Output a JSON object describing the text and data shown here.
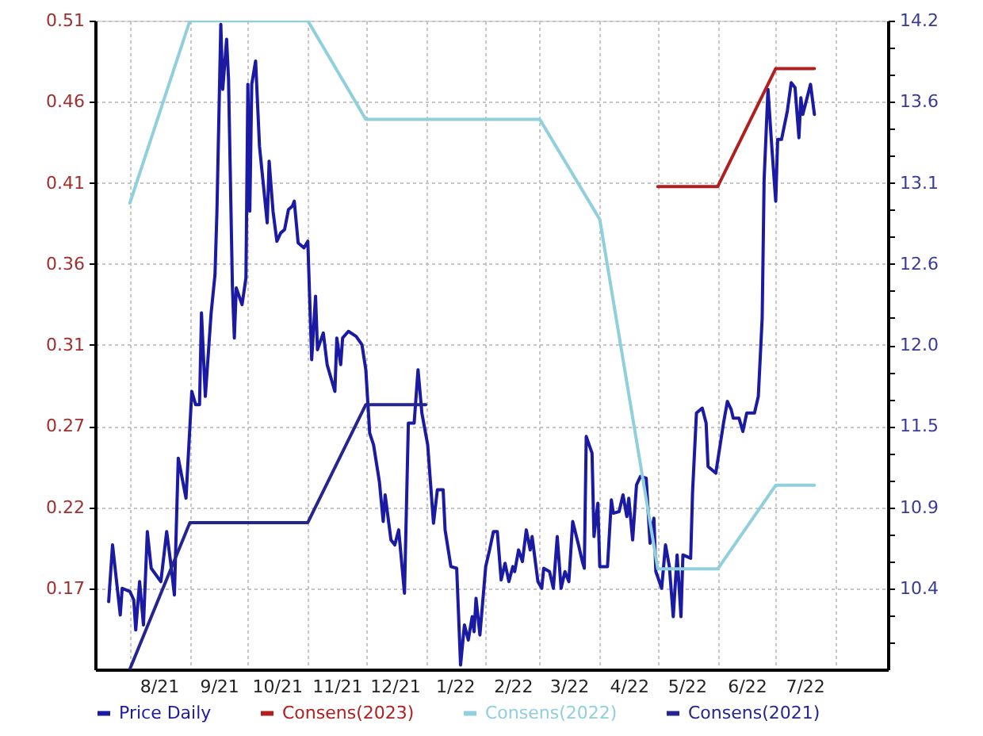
{
  "chart_data": {
    "type": "line",
    "xlim": [
      "2021-07-14",
      "2022-08-28"
    ],
    "xticks": [
      {
        "value": "2021-08-01",
        "label": null
      },
      {
        "value": "2021-08-16",
        "label": "8/21"
      },
      {
        "value": "2021-09-01",
        "label": null
      },
      {
        "value": "2021-09-16",
        "label": "9/21"
      },
      {
        "value": "2021-10-01",
        "label": null
      },
      {
        "value": "2021-10-16",
        "label": "10/21"
      },
      {
        "value": "2021-11-01",
        "label": null
      },
      {
        "value": "2021-11-16",
        "label": "11/21"
      },
      {
        "value": "2021-12-01",
        "label": null
      },
      {
        "value": "2021-12-16",
        "label": "12/21"
      },
      {
        "value": "2022-01-01",
        "label": null
      },
      {
        "value": "2022-01-16",
        "label": "1/22"
      },
      {
        "value": "2022-02-01",
        "label": null
      },
      {
        "value": "2022-02-15",
        "label": "2/22"
      },
      {
        "value": "2022-03-01",
        "label": null
      },
      {
        "value": "2022-03-16",
        "label": "3/22"
      },
      {
        "value": "2022-04-01",
        "label": null
      },
      {
        "value": "2022-04-16",
        "label": "4/22"
      },
      {
        "value": "2022-05-01",
        "label": null
      },
      {
        "value": "2022-05-16",
        "label": "5/22"
      },
      {
        "value": "2022-06-01",
        "label": null
      },
      {
        "value": "2022-06-16",
        "label": "6/22"
      },
      {
        "value": "2022-07-01",
        "label": null
      },
      {
        "value": "2022-07-16",
        "label": "7/22"
      },
      {
        "value": "2022-08-01",
        "label": null
      }
    ],
    "ylim": [
      0.1204,
      0.5092
    ],
    "yticks": [
      {
        "value": 0.169,
        "label": "0.17"
      },
      {
        "value": 0.2176,
        "label": "0.22"
      },
      {
        "value": 0.2662,
        "label": "0.27"
      },
      {
        "value": 0.3148,
        "label": "0.31"
      },
      {
        "value": 0.3634,
        "label": "0.36"
      },
      {
        "value": 0.412,
        "label": "0.41"
      },
      {
        "value": 0.4606,
        "label": "0.46"
      },
      {
        "value": 0.5092,
        "label": "0.51"
      }
    ],
    "y2lim": [
      9.847,
      14.191
    ],
    "y2ticks": [
      {
        "value": 10.028,
        "label": null
      },
      {
        "value": 10.209,
        "label": null
      },
      {
        "value": 10.39,
        "label": "10.4"
      },
      {
        "value": 10.571,
        "label": null
      },
      {
        "value": 10.752,
        "label": null
      },
      {
        "value": 10.933,
        "label": "10.9"
      },
      {
        "value": 11.114,
        "label": null
      },
      {
        "value": 11.295,
        "label": null
      },
      {
        "value": 11.476,
        "label": "11.5"
      },
      {
        "value": 11.657,
        "label": null
      },
      {
        "value": 11.838,
        "label": null
      },
      {
        "value": 12.019,
        "label": "12.0"
      },
      {
        "value": 12.2,
        "label": null
      },
      {
        "value": 12.381,
        "label": null
      },
      {
        "value": 12.562,
        "label": "12.6"
      },
      {
        "value": 12.743,
        "label": null
      },
      {
        "value": 12.924,
        "label": null
      },
      {
        "value": 13.105,
        "label": "13.1"
      },
      {
        "value": 13.286,
        "label": null
      },
      {
        "value": 13.467,
        "label": null
      },
      {
        "value": 13.648,
        "label": "13.6"
      },
      {
        "value": 13.829,
        "label": null
      },
      {
        "value": 14.01,
        "label": null
      },
      {
        "value": 14.191,
        "label": "14.2"
      }
    ],
    "grid": true,
    "legend": "bottom",
    "series": [
      {
        "name": "Price Daily",
        "color": "#1a1aa3",
        "x": [
          "2021-07-21",
          "2021-07-23",
          "2021-07-27",
          "2021-07-28",
          "2021-08-01",
          "2021-08-03",
          "2021-08-04",
          "2021-08-06",
          "2021-08-08",
          "2021-08-10",
          "2021-08-12",
          "2021-08-17",
          "2021-08-20",
          "2021-08-22",
          "2021-08-24",
          "2021-08-26",
          "2021-08-30",
          "2021-09-02",
          "2021-09-04",
          "2021-09-06",
          "2021-09-07",
          "2021-09-09",
          "2021-09-12",
          "2021-09-14",
          "2021-09-15",
          "2021-09-17",
          "2021-09-18",
          "2021-09-20",
          "2021-09-21",
          "2021-09-23",
          "2021-09-24",
          "2021-09-25",
          "2021-09-28",
          "2021-09-30",
          "2021-10-01",
          "2021-10-02",
          "2021-10-03",
          "2021-10-05",
          "2021-10-07",
          "2021-10-11",
          "2021-10-12",
          "2021-10-14",
          "2021-10-16",
          "2021-10-18",
          "2021-10-20",
          "2021-10-22",
          "2021-10-24",
          "2021-10-25",
          "2021-10-27",
          "2021-10-30",
          "2021-11-01",
          "2021-11-03",
          "2021-11-05",
          "2021-11-06",
          "2021-11-09",
          "2021-11-11",
          "2021-11-15",
          "2021-11-16",
          "2021-11-18",
          "2021-11-19",
          "2021-11-22",
          "2021-11-26",
          "2021-11-29",
          "2021-12-01",
          "2021-12-03",
          "2021-12-05",
          "2021-12-08",
          "2021-12-10",
          "2021-12-11",
          "2021-12-14",
          "2021-12-16",
          "2021-12-18",
          "2021-12-21",
          "2021-12-23",
          "2021-12-26",
          "2021-12-28",
          "2021-12-30",
          "2022-01-02",
          "2022-01-05",
          "2022-01-07",
          "2022-01-10",
          "2022-01-11",
          "2022-01-14",
          "2022-01-17",
          "2022-01-19",
          "2022-01-21",
          "2022-01-23",
          "2022-01-25",
          "2022-01-26",
          "2022-01-27",
          "2022-01-29",
          "2022-02-01",
          "2022-02-03",
          "2022-02-05",
          "2022-02-07",
          "2022-02-09",
          "2022-02-11",
          "2022-02-13",
          "2022-02-15",
          "2022-02-16",
          "2022-02-18",
          "2022-02-20",
          "2022-02-22",
          "2022-02-24",
          "2022-02-25",
          "2022-02-28",
          "2022-03-02",
          "2022-03-03",
          "2022-03-06",
          "2022-03-08",
          "2022-03-10",
          "2022-03-12",
          "2022-03-14",
          "2022-03-16",
          "2022-03-18",
          "2022-03-21",
          "2022-03-23",
          "2022-03-24",
          "2022-03-25",
          "2022-03-28",
          "2022-03-29",
          "2022-03-31",
          "2022-04-01",
          "2022-04-05",
          "2022-04-07",
          "2022-04-08",
          "2022-04-11",
          "2022-04-13",
          "2022-04-15",
          "2022-04-16",
          "2022-04-18",
          "2022-04-20",
          "2022-04-22",
          "2022-04-25",
          "2022-04-27",
          "2022-04-29",
          "2022-04-30",
          "2022-05-03",
          "2022-05-05",
          "2022-05-07",
          "2022-05-09",
          "2022-05-11",
          "2022-05-13",
          "2022-05-14",
          "2022-05-18",
          "2022-05-19",
          "2022-05-21",
          "2022-05-24",
          "2022-05-26",
          "2022-05-27",
          "2022-05-31",
          "2022-06-04",
          "2022-06-06",
          "2022-06-08",
          "2022-06-09",
          "2022-06-12",
          "2022-06-14",
          "2022-06-16",
          "2022-06-20",
          "2022-06-22",
          "2022-06-24",
          "2022-06-25",
          "2022-06-27",
          "2022-06-29",
          "2022-07-01",
          "2022-07-02",
          "2022-07-04",
          "2022-07-07",
          "2022-07-09",
          "2022-07-11",
          "2022-07-13",
          "2022-07-14",
          "2022-07-15",
          "2022-07-19",
          "2022-07-21"
        ],
        "values": [
          0.161,
          0.195,
          0.153,
          0.169,
          0.167,
          0.162,
          0.144,
          0.173,
          0.147,
          0.203,
          0.181,
          0.173,
          0.203,
          0.185,
          0.165,
          0.247,
          0.223,
          0.287,
          0.279,
          0.279,
          0.334,
          0.284,
          0.334,
          0.357,
          0.395,
          0.507,
          0.468,
          0.498,
          0.474,
          0.35,
          0.319,
          0.349,
          0.339,
          0.355,
          0.471,
          0.395,
          0.471,
          0.485,
          0.434,
          0.388,
          0.425,
          0.395,
          0.377,
          0.382,
          0.384,
          0.396,
          0.398,
          0.401,
          0.376,
          0.373,
          0.377,
          0.306,
          0.344,
          0.312,
          0.322,
          0.303,
          0.287,
          0.319,
          0.303,
          0.319,
          0.323,
          0.32,
          0.315,
          0.3,
          0.262,
          0.255,
          0.233,
          0.209,
          0.225,
          0.198,
          0.195,
          0.204,
          0.166,
          0.268,
          0.268,
          0.3,
          0.274,
          0.255,
          0.208,
          0.228,
          0.228,
          0.204,
          0.182,
          0.181,
          0.123,
          0.147,
          0.138,
          0.152,
          0.143,
          0.163,
          0.141,
          0.182,
          0.192,
          0.203,
          0.203,
          0.174,
          0.184,
          0.173,
          0.182,
          0.179,
          0.192,
          0.185,
          0.204,
          0.192,
          0.2,
          0.173,
          0.169,
          0.181,
          0.179,
          0.169,
          0.2,
          0.169,
          0.179,
          0.173,
          0.209,
          0.195,
          0.185,
          0.181,
          0.26,
          0.25,
          0.2,
          0.22,
          0.182,
          0.182,
          0.222,
          0.214,
          0.215,
          0.225,
          0.212,
          0.223,
          0.198,
          0.231,
          0.236,
          0.235,
          0.196,
          0.211,
          0.179,
          0.169,
          0.195,
          0.182,
          0.152,
          0.189,
          0.152,
          0.189,
          0.187,
          0.227,
          0.274,
          0.277,
          0.268,
          0.242,
          0.238,
          0.268,
          0.281,
          0.276,
          0.271,
          0.271,
          0.263,
          0.274,
          0.274,
          0.284,
          0.331,
          0.414,
          0.468,
          0.433,
          0.401,
          0.438,
          0.438,
          0.455,
          0.472,
          0.469,
          0.439,
          0.463,
          0.453,
          0.471,
          0.453
        ]
      },
      {
        "name": "Consens(2023)",
        "color": "#b02020",
        "axis": "y2",
        "x": [
          "2022-05-01",
          "2022-06-01",
          "2022-07-01",
          "2022-07-21"
        ],
        "values": [
          13.08,
          13.08,
          13.87,
          13.87
        ]
      },
      {
        "name": "Consens(2022)",
        "color": "#90cfdc",
        "axis": "y2",
        "x": [
          "2021-08-01",
          "2021-09-01",
          "2021-11-01",
          "2021-12-01",
          "2022-03-01",
          "2022-04-01",
          "2022-05-01",
          "2022-06-01",
          "2022-07-01",
          "2022-07-21"
        ],
        "values": [
          12.97,
          14.19,
          14.19,
          13.53,
          13.53,
          12.86,
          10.52,
          10.52,
          11.08,
          11.08
        ]
      },
      {
        "name": "Consens(2021)",
        "color": "#25258f",
        "axis": "y2",
        "x": [
          "2021-08-01",
          "2021-09-01",
          "2021-11-01",
          "2021-12-01",
          "2022-01-01"
        ],
        "values": [
          9.85,
          10.83,
          10.83,
          11.62,
          11.62
        ]
      }
    ]
  }
}
